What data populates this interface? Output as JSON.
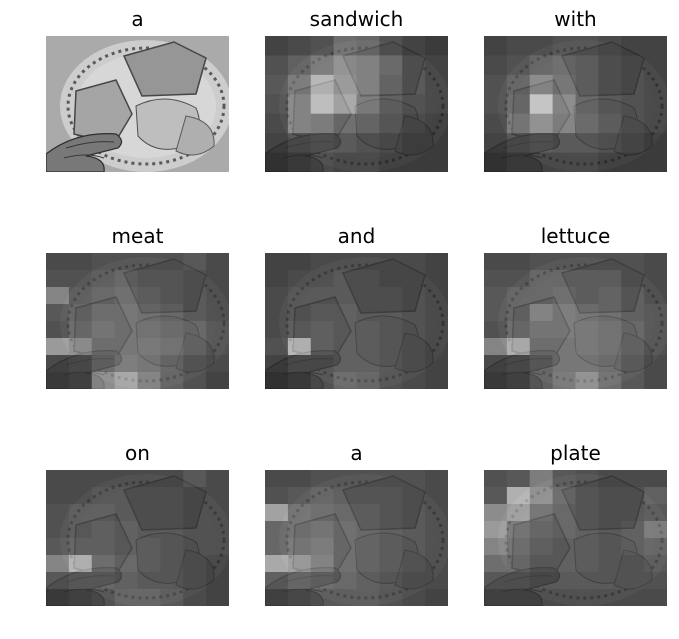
{
  "panels": [
    {
      "word": "a",
      "image": "photo-plate-sandwich-hand",
      "mode": "photo",
      "attention": []
    },
    {
      "word": "sandwich",
      "image": "attention-map-sandwich",
      "mode": "attention",
      "attention": [
        [
          0.1,
          0.15,
          0.2,
          0.4,
          0.35,
          0.2,
          0.1,
          0.05
        ],
        [
          0.2,
          0.3,
          0.45,
          0.6,
          0.55,
          0.4,
          0.2,
          0.1
        ],
        [
          0.25,
          0.45,
          0.85,
          0.65,
          0.55,
          0.35,
          0.2,
          0.1
        ],
        [
          0.2,
          0.55,
          0.95,
          0.75,
          0.45,
          0.25,
          0.15,
          0.1
        ],
        [
          0.15,
          0.55,
          0.5,
          0.35,
          0.3,
          0.2,
          0.1,
          0.05
        ],
        [
          0.1,
          0.2,
          0.25,
          0.2,
          0.15,
          0.1,
          0.05,
          0.05
        ],
        [
          0.05,
          0.1,
          0.15,
          0.1,
          0.1,
          0.05,
          0.05,
          0.05
        ]
      ]
    },
    {
      "word": "with",
      "image": "attention-map-with",
      "mode": "attention",
      "attention": [
        [
          0.1,
          0.15,
          0.15,
          0.2,
          0.2,
          0.15,
          0.1,
          0.1
        ],
        [
          0.15,
          0.2,
          0.3,
          0.35,
          0.3,
          0.2,
          0.15,
          0.1
        ],
        [
          0.2,
          0.3,
          0.55,
          0.4,
          0.3,
          0.2,
          0.15,
          0.1
        ],
        [
          0.2,
          0.35,
          1.0,
          0.55,
          0.3,
          0.2,
          0.15,
          0.1
        ],
        [
          0.15,
          0.45,
          0.65,
          0.5,
          0.35,
          0.25,
          0.15,
          0.1
        ],
        [
          0.1,
          0.2,
          0.25,
          0.2,
          0.2,
          0.15,
          0.1,
          0.05
        ],
        [
          0.05,
          0.1,
          0.1,
          0.1,
          0.1,
          0.05,
          0.05,
          0.05
        ]
      ]
    },
    {
      "word": "meat",
      "image": "attention-map-meat",
      "mode": "attention",
      "attention": [
        [
          0.15,
          0.15,
          0.2,
          0.2,
          0.2,
          0.2,
          0.25,
          0.15
        ],
        [
          0.2,
          0.2,
          0.25,
          0.3,
          0.25,
          0.25,
          0.2,
          0.15
        ],
        [
          0.55,
          0.25,
          0.3,
          0.35,
          0.3,
          0.25,
          0.2,
          0.15
        ],
        [
          0.25,
          0.3,
          0.4,
          0.4,
          0.35,
          0.3,
          0.2,
          0.15
        ],
        [
          0.2,
          0.35,
          0.45,
          0.4,
          0.4,
          0.35,
          0.3,
          0.2
        ],
        [
          0.7,
          0.6,
          0.4,
          0.4,
          0.45,
          0.4,
          0.3,
          0.2
        ],
        [
          0.15,
          0.2,
          0.35,
          0.45,
          0.4,
          0.3,
          0.2,
          0.15
        ],
        [
          0.1,
          0.15,
          0.6,
          0.75,
          0.5,
          0.3,
          0.2,
          0.1
        ]
      ]
    },
    {
      "word": "and",
      "image": "attention-map-and",
      "mode": "attention",
      "attention": [
        [
          0.1,
          0.1,
          0.15,
          0.15,
          0.15,
          0.15,
          0.15,
          0.1
        ],
        [
          0.1,
          0.15,
          0.15,
          0.2,
          0.2,
          0.15,
          0.15,
          0.1
        ],
        [
          0.15,
          0.2,
          0.2,
          0.2,
          0.2,
          0.2,
          0.15,
          0.1
        ],
        [
          0.15,
          0.2,
          0.25,
          0.25,
          0.2,
          0.2,
          0.15,
          0.1
        ],
        [
          0.15,
          0.25,
          0.3,
          0.25,
          0.25,
          0.2,
          0.15,
          0.1
        ],
        [
          0.2,
          0.85,
          0.3,
          0.25,
          0.25,
          0.2,
          0.15,
          0.1
        ],
        [
          0.1,
          0.2,
          0.2,
          0.25,
          0.25,
          0.2,
          0.15,
          0.1
        ],
        [
          0.05,
          0.1,
          0.2,
          0.35,
          0.3,
          0.2,
          0.15,
          0.1
        ]
      ]
    },
    {
      "word": "lettuce",
      "image": "attention-map-lettuce",
      "mode": "attention",
      "attention": [
        [
          0.15,
          0.15,
          0.2,
          0.2,
          0.2,
          0.2,
          0.2,
          0.15
        ],
        [
          0.2,
          0.2,
          0.3,
          0.3,
          0.3,
          0.3,
          0.2,
          0.15
        ],
        [
          0.25,
          0.3,
          0.3,
          0.35,
          0.3,
          0.35,
          0.25,
          0.15
        ],
        [
          0.25,
          0.3,
          0.55,
          0.45,
          0.4,
          0.35,
          0.25,
          0.2
        ],
        [
          0.2,
          0.35,
          0.45,
          0.45,
          0.45,
          0.4,
          0.3,
          0.2
        ],
        [
          0.55,
          0.8,
          0.4,
          0.4,
          0.45,
          0.4,
          0.3,
          0.2
        ],
        [
          0.15,
          0.2,
          0.3,
          0.4,
          0.4,
          0.35,
          0.25,
          0.15
        ],
        [
          0.1,
          0.15,
          0.3,
          0.45,
          0.6,
          0.4,
          0.25,
          0.15
        ]
      ]
    },
    {
      "word": "on",
      "image": "attention-map-on",
      "mode": "attention",
      "attention": [
        [
          0.15,
          0.15,
          0.15,
          0.15,
          0.15,
          0.15,
          0.25,
          0.15
        ],
        [
          0.15,
          0.15,
          0.2,
          0.2,
          0.2,
          0.2,
          0.15,
          0.15
        ],
        [
          0.2,
          0.25,
          0.25,
          0.2,
          0.2,
          0.2,
          0.15,
          0.15
        ],
        [
          0.2,
          0.25,
          0.3,
          0.25,
          0.2,
          0.2,
          0.15,
          0.15
        ],
        [
          0.25,
          0.3,
          0.3,
          0.25,
          0.25,
          0.2,
          0.15,
          0.15
        ],
        [
          0.55,
          0.85,
          0.4,
          0.3,
          0.25,
          0.2,
          0.15,
          0.1
        ],
        [
          0.25,
          0.3,
          0.3,
          0.25,
          0.2,
          0.2,
          0.15,
          0.1
        ],
        [
          0.1,
          0.15,
          0.2,
          0.3,
          0.3,
          0.25,
          0.15,
          0.1
        ]
      ]
    },
    {
      "word": "a",
      "image": "attention-map-a",
      "mode": "attention",
      "attention": [
        [
          0.15,
          0.15,
          0.2,
          0.2,
          0.2,
          0.2,
          0.2,
          0.15
        ],
        [
          0.2,
          0.25,
          0.3,
          0.25,
          0.25,
          0.25,
          0.2,
          0.15
        ],
        [
          0.75,
          0.4,
          0.35,
          0.3,
          0.3,
          0.25,
          0.2,
          0.15
        ],
        [
          0.35,
          0.4,
          0.45,
          0.35,
          0.3,
          0.25,
          0.2,
          0.15
        ],
        [
          0.35,
          0.45,
          0.5,
          0.35,
          0.3,
          0.25,
          0.2,
          0.15
        ],
        [
          0.8,
          0.7,
          0.55,
          0.35,
          0.3,
          0.25,
          0.2,
          0.15
        ],
        [
          0.3,
          0.4,
          0.35,
          0.3,
          0.25,
          0.2,
          0.15,
          0.15
        ],
        [
          0.15,
          0.2,
          0.25,
          0.25,
          0.25,
          0.2,
          0.15,
          0.1
        ]
      ]
    },
    {
      "word": "plate",
      "image": "attention-map-plate",
      "mode": "attention",
      "attention": [
        [
          0.2,
          0.25,
          0.5,
          0.25,
          0.2,
          0.15,
          0.15,
          0.15
        ],
        [
          0.25,
          0.85,
          0.6,
          0.35,
          0.25,
          0.2,
          0.2,
          0.3
        ],
        [
          0.6,
          0.7,
          0.4,
          0.3,
          0.25,
          0.2,
          0.2,
          0.25
        ],
        [
          0.7,
          0.45,
          0.35,
          0.3,
          0.25,
          0.2,
          0.25,
          0.45
        ],
        [
          0.55,
          0.4,
          0.3,
          0.25,
          0.25,
          0.2,
          0.25,
          0.3
        ],
        [
          0.4,
          0.35,
          0.25,
          0.25,
          0.25,
          0.2,
          0.2,
          0.25
        ],
        [
          0.25,
          0.25,
          0.2,
          0.2,
          0.2,
          0.2,
          0.2,
          0.2
        ],
        [
          0.15,
          0.15,
          0.15,
          0.15,
          0.15,
          0.15,
          0.15,
          0.15
        ]
      ]
    }
  ]
}
